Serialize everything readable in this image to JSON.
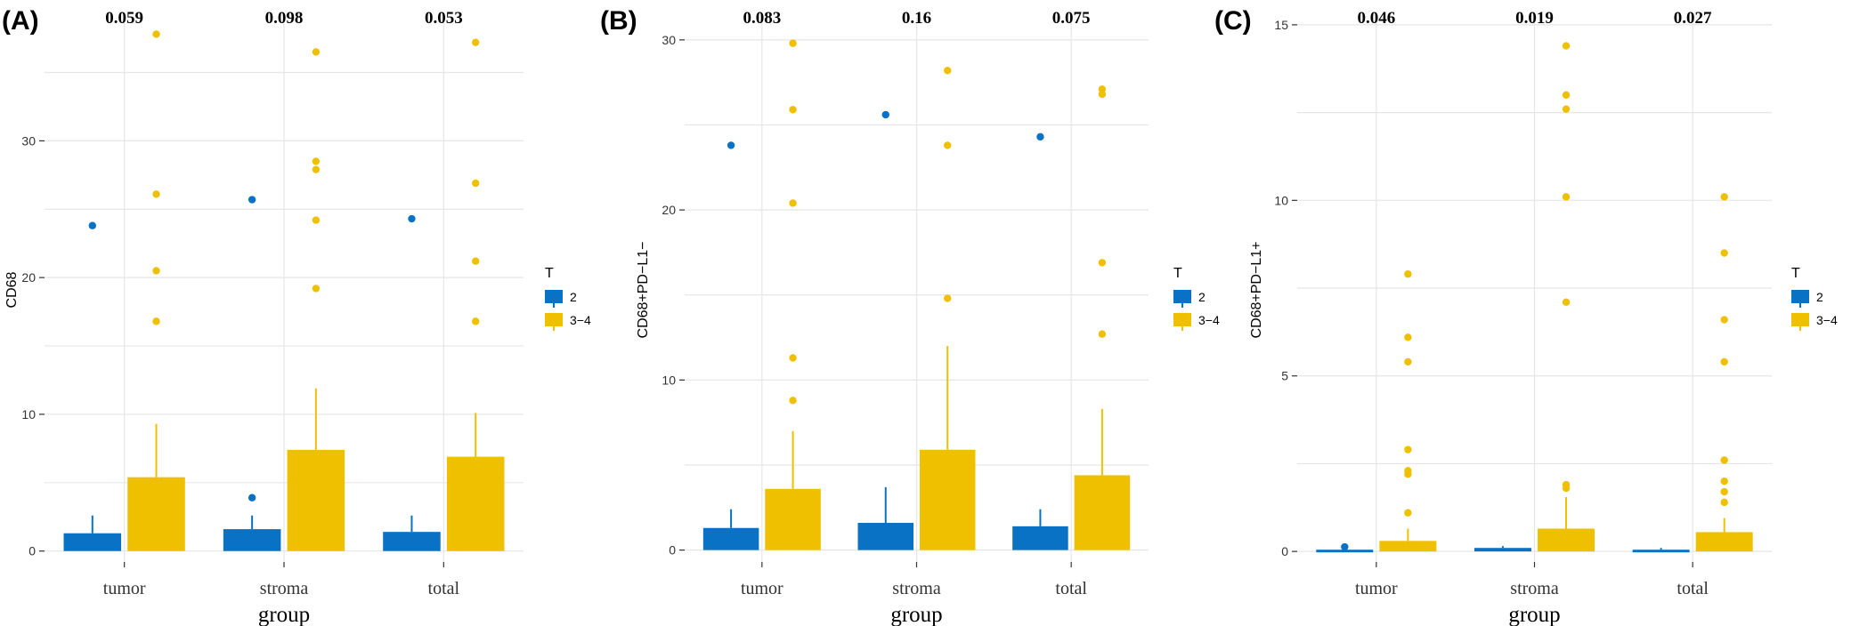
{
  "colors": {
    "t2": "#0a72c4",
    "t34": "#efc000",
    "grid": "#e6e6e6",
    "axis": "#333333"
  },
  "chart_data": [
    {
      "type": "bar",
      "panel_label": "(A)",
      "ylabel": "CD68",
      "xlabel": "group",
      "categories": [
        "tumor",
        "stroma",
        "total"
      ],
      "ylim": [
        -0.8,
        39
      ],
      "y_ticks": [
        0,
        10,
        20,
        30
      ],
      "y_tick_labels": [
        "0",
        "10",
        "20",
        "30"
      ],
      "p_values": [
        "0.059",
        "0.098",
        "0.053"
      ],
      "legend": {
        "title": "T",
        "entries": [
          "2",
          "3−4"
        ]
      },
      "series": [
        {
          "name": "2",
          "values": [
            1.3,
            1.6,
            1.4
          ],
          "whisker": [
            2.6,
            2.6,
            2.6
          ],
          "outliers": [
            [
              23.8
            ],
            [
              25.7,
              3.9
            ],
            [
              24.3
            ]
          ]
        },
        {
          "name": "3−4",
          "values": [
            5.4,
            7.4,
            6.9
          ],
          "whisker": [
            9.3,
            11.9,
            10.1
          ],
          "outliers": [
            [
              37.8,
              26.1,
              20.5,
              16.8
            ],
            [
              36.5,
              28.5,
              27.9,
              24.2,
              19.2
            ],
            [
              37.2,
              26.9,
              21.2,
              16.8
            ]
          ]
        }
      ]
    },
    {
      "type": "bar",
      "panel_label": "(B)",
      "ylabel": "CD68+PD−L1−",
      "xlabel": "group",
      "categories": [
        "tumor",
        "stroma",
        "total"
      ],
      "ylim": [
        -0.7,
        31.3
      ],
      "y_ticks": [
        0,
        10,
        20,
        30
      ],
      "y_tick_labels": [
        "0",
        "10",
        "20",
        "30"
      ],
      "p_values": [
        "0.083",
        "0.16",
        "0.075"
      ],
      "legend": {
        "title": "T",
        "entries": [
          "2",
          "3−4"
        ]
      },
      "series": [
        {
          "name": "2",
          "values": [
            1.3,
            1.6,
            1.4
          ],
          "whisker": [
            2.4,
            3.7,
            2.4
          ],
          "outliers": [
            [
              23.8
            ],
            [
              25.6
            ],
            [
              24.3
            ]
          ]
        },
        {
          "name": "3−4",
          "values": [
            3.6,
            5.9,
            4.4
          ],
          "whisker": [
            7.0,
            12.0,
            8.3
          ],
          "outliers": [
            [
              29.8,
              25.9,
              20.4,
              11.3,
              8.8
            ],
            [
              28.2,
              23.8,
              14.8
            ],
            [
              27.1,
              26.8,
              16.9,
              12.7
            ]
          ]
        }
      ]
    },
    {
      "type": "bar",
      "panel_label": "(C)",
      "ylabel": "CD68+PD−L1+",
      "xlabel": "group",
      "categories": [
        "tumor",
        "stroma",
        "total"
      ],
      "ylim": [
        -0.3,
        15.2
      ],
      "y_ticks": [
        0,
        5,
        10,
        15
      ],
      "y_tick_labels": [
        "0",
        "5",
        "10",
        "15"
      ],
      "p_values": [
        "0.046",
        "0.019",
        "0.027"
      ],
      "legend": {
        "title": "T",
        "entries": [
          "2",
          "3−4"
        ]
      },
      "series": [
        {
          "name": "2",
          "values": [
            0.05,
            0.1,
            0.05
          ],
          "whisker": [
            0.1,
            0.15,
            0.1
          ],
          "outliers": [
            [
              0.13
            ],
            [],
            []
          ]
        },
        {
          "name": "3−4",
          "values": [
            0.3,
            0.65,
            0.55
          ],
          "whisker": [
            0.65,
            1.55,
            0.95
          ],
          "outliers": [
            [
              7.9,
              6.1,
              5.4,
              2.9,
              2.3,
              2.2,
              1.1
            ],
            [
              14.4,
              13.0,
              12.6,
              10.1,
              7.1,
              1.9,
              1.8
            ],
            [
              10.1,
              8.5,
              6.6,
              5.4,
              2.6,
              2.0,
              1.7,
              1.4
            ]
          ]
        }
      ]
    }
  ]
}
